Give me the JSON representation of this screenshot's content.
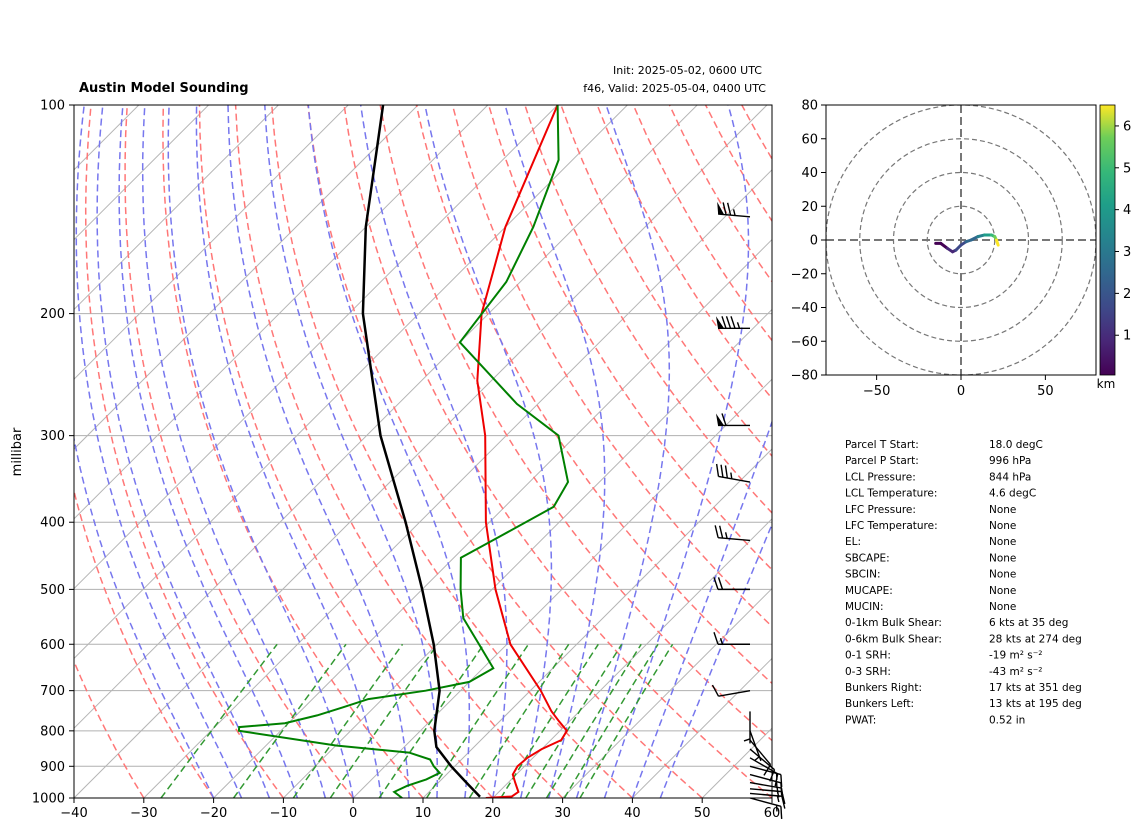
{
  "title": "Austin Model Sounding",
  "init_label": "Init: 2025-05-02, 0600 UTC",
  "valid_label": "f46, Valid: 2025-05-04, 0400 UTC",
  "chart_data": [
    {
      "type": "line",
      "name": "skew-t",
      "ylabel": "millibar",
      "xlim": [
        -40,
        60
      ],
      "ylim": [
        1000,
        100
      ],
      "y_scale": "log",
      "skew": "45deg",
      "x_ticks": [
        -40,
        -30,
        -20,
        -10,
        0,
        10,
        20,
        30,
        40,
        50,
        60
      ],
      "x_tick_labels": [
        "−40",
        "−30",
        "−20",
        "−10",
        "0",
        "10",
        "20",
        "30",
        "40",
        "50",
        "60"
      ],
      "y_ticks": [
        1000,
        900,
        800,
        700,
        600,
        500,
        400,
        300,
        200,
        100
      ],
      "y_tick_labels": [
        "1000",
        "900",
        "800",
        "700",
        "600",
        "500",
        "400",
        "300",
        "200",
        "100"
      ],
      "grid": true,
      "colors": {
        "temperature": "#ee0000",
        "dewpoint": "#008000",
        "parcel": "#000000",
        "dry_adiabat": "#ff7777",
        "moist_adiabat": "#7777ee",
        "mixing_ratio": "#339933"
      },
      "temperature": {
        "p": [
          1000,
          995,
          980,
          950,
          925,
          900,
          875,
          850,
          825,
          800,
          775,
          750,
          700,
          600,
          500,
          400,
          300,
          250,
          200,
          150,
          100
        ],
        "t": [
          19.0,
          22.5,
          22.8,
          21.0,
          19.5,
          19.0,
          19.2,
          20.0,
          21.5,
          21.0,
          18.5,
          16.0,
          11.5,
          0.5,
          -9.5,
          -20.5,
          -33.0,
          -42.0,
          -51.0,
          -60.0,
          -70.0
        ]
      },
      "dewpoint": {
        "p": [
          1000,
          980,
          960,
          940,
          920,
          900,
          880,
          860,
          840,
          800,
          790,
          780,
          760,
          740,
          720,
          700,
          680,
          650,
          600,
          550,
          500,
          450,
          420,
          380,
          350,
          300,
          270,
          220,
          180,
          150,
          120,
          100
        ],
        "td": [
          7.0,
          5.0,
          6.0,
          7.8,
          8.8,
          7.0,
          5.5,
          1.5,
          -10.0,
          -26.0,
          -26.5,
          -20.5,
          -17.0,
          -14.5,
          -12.0,
          -5.0,
          0.0,
          1.5,
          -4.0,
          -10.0,
          -14.5,
          -19.0,
          -16.5,
          -13.0,
          -14.5,
          -22.5,
          -33.0,
          -50.0,
          -52.0,
          -56.0,
          -62.0,
          -70.0
        ]
      },
      "parcel": {
        "p": [
          996,
          950,
          900,
          844,
          800,
          700,
          600,
          500,
          400,
          300,
          200,
          150,
          100
        ],
        "t": [
          18.0,
          14.0,
          9.5,
          4.6,
          2.0,
          -3.0,
          -10.5,
          -20.0,
          -32.0,
          -48.0,
          -68.0,
          -80.0,
          -95.0
        ]
      },
      "wind_barbs": [
        {
          "p": 1000,
          "speed_kts": 15,
          "dir_deg": 105
        },
        {
          "p": 985,
          "speed_kts": 15,
          "dir_deg": 95
        },
        {
          "p": 970,
          "speed_kts": 15,
          "dir_deg": 95
        },
        {
          "p": 950,
          "speed_kts": 15,
          "dir_deg": 100
        },
        {
          "p": 925,
          "speed_kts": 15,
          "dir_deg": 105
        },
        {
          "p": 900,
          "speed_kts": 15,
          "dir_deg": 105
        },
        {
          "p": 875,
          "speed_kts": 10,
          "dir_deg": 120
        },
        {
          "p": 850,
          "speed_kts": 10,
          "dir_deg": 130
        },
        {
          "p": 825,
          "speed_kts": 10,
          "dir_deg": 140
        },
        {
          "p": 800,
          "speed_kts": 5,
          "dir_deg": 160
        },
        {
          "p": 750,
          "speed_kts": 5,
          "dir_deg": 180
        },
        {
          "p": 700,
          "speed_kts": 10,
          "dir_deg": 260
        },
        {
          "p": 600,
          "speed_kts": 15,
          "dir_deg": 270
        },
        {
          "p": 500,
          "speed_kts": 20,
          "dir_deg": 270
        },
        {
          "p": 425,
          "speed_kts": 25,
          "dir_deg": 275
        },
        {
          "p": 350,
          "speed_kts": 35,
          "dir_deg": 280
        },
        {
          "p": 290,
          "speed_kts": 60,
          "dir_deg": 270
        },
        {
          "p": 210,
          "speed_kts": 85,
          "dir_deg": 270
        },
        {
          "p": 145,
          "speed_kts": 75,
          "dir_deg": 275
        }
      ]
    },
    {
      "type": "line",
      "name": "hodograph",
      "xlim": [
        -80,
        80
      ],
      "ylim": [
        -80,
        80
      ],
      "x_ticks": [
        -50,
        0,
        50
      ],
      "x_tick_labels": [
        "−50",
        "0",
        "50"
      ],
      "y_ticks": [
        80,
        60,
        40,
        20,
        0,
        -20,
        -40,
        -60,
        -80
      ],
      "y_tick_labels": [
        "80",
        "60",
        "40",
        "20",
        "0",
        "−20",
        "−40",
        "−60",
        "−80"
      ],
      "rings": [
        20,
        40,
        60,
        80
      ],
      "u": [
        -15,
        -12,
        -8,
        -5,
        -3,
        0,
        3,
        6,
        10,
        14,
        18,
        20,
        21,
        22
      ],
      "v": [
        -2,
        -2,
        -5,
        -7,
        -6,
        -3,
        -1,
        0,
        2,
        3,
        3,
        2,
        0,
        -3
      ],
      "z_km": [
        0.05,
        0.3,
        0.6,
        0.9,
        1.2,
        1.6,
        2.0,
        2.5,
        3.0,
        3.5,
        4.2,
        5.0,
        5.8,
        6.4
      ],
      "colorbar": {
        "label": "km",
        "ticks": [
          1,
          2,
          3,
          4,
          5,
          6
        ],
        "range": [
          0.05,
          6.5
        ],
        "colormap": "viridis"
      }
    }
  ],
  "params": [
    {
      "label": "Parcel T Start:",
      "value": "18.0 degC"
    },
    {
      "label": "Parcel P Start:",
      "value": "996 hPa"
    },
    {
      "label": "LCL Pressure:",
      "value": "844 hPa"
    },
    {
      "label": "LCL Temperature:",
      "value": "4.6 degC"
    },
    {
      "label": "LFC Pressure:",
      "value": "None"
    },
    {
      "label": "LFC Temperature:",
      "value": "None"
    },
    {
      "label": "EL:",
      "value": "None"
    },
    {
      "label": "SBCAPE:",
      "value": "None"
    },
    {
      "label": "SBCIN:",
      "value": "None"
    },
    {
      "label": "MUCAPE:",
      "value": "None"
    },
    {
      "label": "MUCIN:",
      "value": "None"
    },
    {
      "label": "0-1km Bulk Shear:",
      "value": "6 kts at 35 deg"
    },
    {
      "label": "0-6km Bulk Shear:",
      "value": "28 kts at 274 deg"
    },
    {
      "label": "0-1 SRH:",
      "value": "-19 m² s⁻²"
    },
    {
      "label": "0-3 SRH:",
      "value": "-43 m² s⁻²"
    },
    {
      "label": "Bunkers Right:",
      "value": "17 kts at 351 deg"
    },
    {
      "label": "Bunkers Left:",
      "value": "13 kts at 195 deg"
    },
    {
      "label": "PWAT:",
      "value": "0.52 in"
    }
  ]
}
